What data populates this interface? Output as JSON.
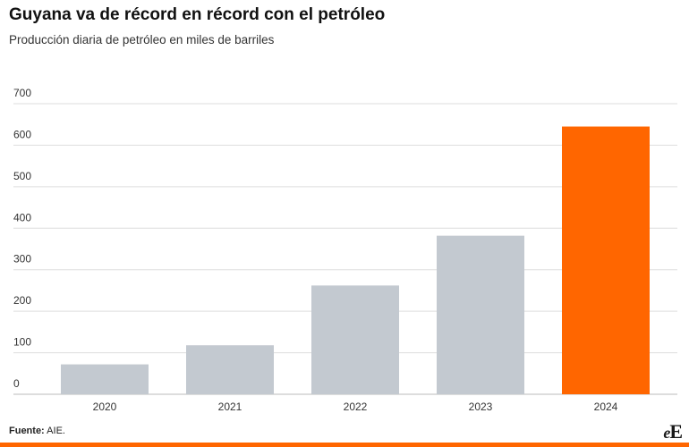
{
  "chart_data": {
    "type": "bar",
    "title": "Guyana va de récord en récord con el petróleo",
    "subtitle": "Producción diaria de petróleo en miles de barriles",
    "categories": [
      "2020",
      "2021",
      "2022",
      "2023",
      "2024"
    ],
    "values": [
      72,
      118,
      262,
      382,
      645
    ],
    "ylim": [
      0,
      700
    ],
    "yticks": [
      0,
      100,
      200,
      300,
      400,
      500,
      600,
      700
    ],
    "ytick_labels": [
      "0",
      "100",
      "200",
      "300",
      "400",
      "500",
      "600",
      "700"
    ],
    "xlabel": "",
    "ylabel": "",
    "grid": true,
    "colors": {
      "default_bar": "#c3c9d0",
      "highlight_bar": "#ff6600",
      "gridline": "#dddddd"
    },
    "highlight_index": 4
  },
  "source": {
    "label": "Fuente:",
    "text": " AIE."
  },
  "logo": {
    "small": "e",
    "big": "E"
  }
}
